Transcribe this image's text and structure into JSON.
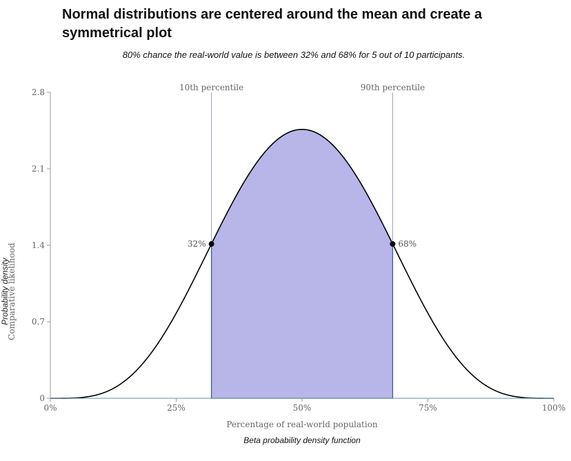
{
  "title": "Normal distributions are centered around the mean and create a symmetrical plot",
  "subtitle": "80% chance the real-world value is between 32% and 68% for 5 out of 10 participants.",
  "caption": "Beta probability density function",
  "colors": {
    "fill": "#b8b6e8",
    "area_stroke": "#3d5a99",
    "curve": "#000000",
    "marker_line": "#a9a7dc",
    "axis": "#999999",
    "baseline": "#5b8fb0"
  },
  "chart_data": {
    "type": "area",
    "distribution": "beta",
    "alpha": 5,
    "beta": 5,
    "xlabel": "Percentage of real-world population",
    "ylabel_primary": "Probability density",
    "ylabel_secondary": "Comparative likelihood",
    "xlim": [
      0,
      1
    ],
    "ylim": [
      0,
      2.8
    ],
    "x_ticks": [
      {
        "value": 0,
        "label": "0%"
      },
      {
        "value": 0.25,
        "label": "25%"
      },
      {
        "value": 0.5,
        "label": "50%"
      },
      {
        "value": 0.75,
        "label": "75%"
      },
      {
        "value": 1,
        "label": "100%"
      }
    ],
    "y_ticks": [
      {
        "value": 0,
        "label": "0"
      },
      {
        "value": 0.7,
        "label": "0.7"
      },
      {
        "value": 1.4,
        "label": "1.4"
      },
      {
        "value": 2.1,
        "label": "2.1"
      },
      {
        "value": 2.8,
        "label": "2.8"
      }
    ],
    "markers": [
      {
        "name": "10th percentile",
        "x": 0.32,
        "label": "32%",
        "density": 1.32
      },
      {
        "name": "90th percentile",
        "x": 0.68,
        "label": "68%",
        "density": 1.32
      }
    ],
    "peak": {
      "x": 0.5,
      "density": 2.73
    }
  }
}
